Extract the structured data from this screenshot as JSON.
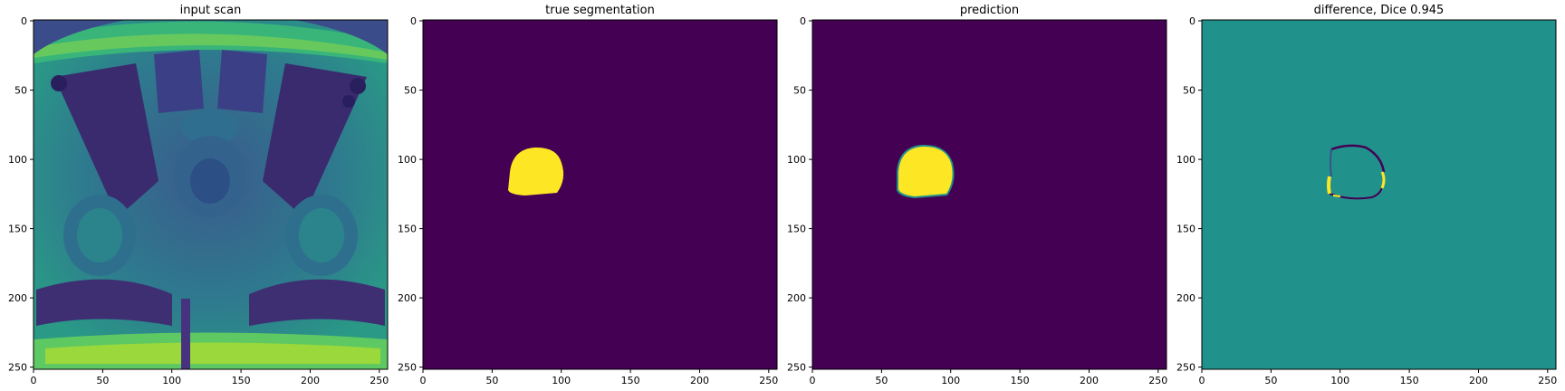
{
  "colormap": {
    "name": "viridis",
    "dark": "#440154",
    "mid": "#21918c",
    "bright": "#fde725"
  },
  "panels": [
    {
      "title": "input scan",
      "image": "mri-axial-pelvis",
      "x_ticks": [
        "0",
        "50",
        "100",
        "150",
        "200",
        "250"
      ],
      "y_ticks": [
        "0",
        "50",
        "100",
        "150",
        "200",
        "250"
      ]
    },
    {
      "title": "true segmentation",
      "image": "mask-true",
      "x_ticks": [
        "0",
        "50",
        "100",
        "150",
        "200",
        "250"
      ],
      "y_ticks": [
        "0",
        "50",
        "100",
        "150",
        "200",
        "250"
      ]
    },
    {
      "title": "prediction",
      "image": "mask-predicted",
      "x_ticks": [
        "0",
        "50",
        "100",
        "150",
        "200",
        "250"
      ],
      "y_ticks": [
        "0",
        "50",
        "100",
        "150",
        "200",
        "250"
      ]
    },
    {
      "title": "difference, Dice 0.945",
      "image": "mask-difference",
      "x_ticks": [
        "0",
        "50",
        "100",
        "150",
        "200",
        "250"
      ],
      "y_ticks": [
        "0",
        "50",
        "100",
        "150",
        "200",
        "250"
      ]
    }
  ]
}
